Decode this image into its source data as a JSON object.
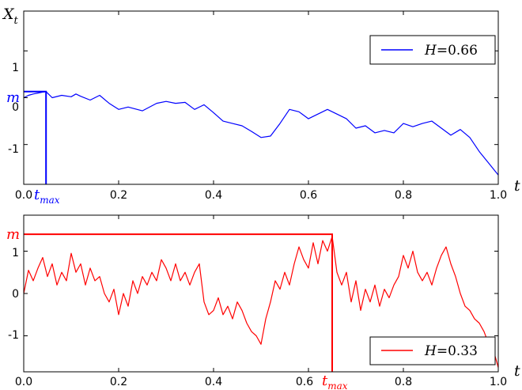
{
  "chart_data": [
    {
      "type": "line",
      "ylabel_main": "X",
      "ylabel_sub": "t",
      "xlabel": "t",
      "xlim": [
        0.0,
        1.0
      ],
      "ylim": [
        -1.85,
        1.85
      ],
      "xticks": [
        "0.0",
        "0.2",
        "0.4",
        "0.6",
        "0.8",
        "1.0"
      ],
      "yticks": [
        "1",
        "0",
        "-1"
      ],
      "legend": {
        "param": "H",
        "eq": "=0.66",
        "position": "top-right"
      },
      "color": "#0000ff",
      "m_label": "m",
      "tmax_label": "t",
      "tmax_sub": "max",
      "m_value": 0.13,
      "t_max": 0.047,
      "series": [
        {
          "x": [
            0.0,
            0.01,
            0.02,
            0.03,
            0.04,
            0.047,
            0.06,
            0.08,
            0.1,
            0.11,
            0.12,
            0.14,
            0.16,
            0.18,
            0.2,
            0.22,
            0.25,
            0.28,
            0.3,
            0.32,
            0.34,
            0.36,
            0.38,
            0.4,
            0.42,
            0.44,
            0.46,
            0.48,
            0.5,
            0.52,
            0.54,
            0.56,
            0.58,
            0.6,
            0.62,
            0.64,
            0.66,
            0.68,
            0.7,
            0.72,
            0.74,
            0.76,
            0.78,
            0.8,
            0.82,
            0.84,
            0.86,
            0.88,
            0.9,
            0.92,
            0.94,
            0.96,
            0.98,
            1.0
          ],
          "y": [
            0.0,
            0.05,
            0.08,
            0.1,
            0.12,
            0.13,
            0.0,
            0.05,
            0.02,
            0.08,
            0.03,
            -0.05,
            0.05,
            -0.12,
            -0.25,
            -0.2,
            -0.28,
            -0.12,
            -0.08,
            -0.12,
            -0.1,
            -0.25,
            -0.15,
            -0.32,
            -0.5,
            -0.55,
            -0.6,
            -0.72,
            -0.85,
            -0.82,
            -0.55,
            -0.25,
            -0.3,
            -0.45,
            -0.35,
            -0.25,
            -0.35,
            -0.45,
            -0.65,
            -0.6,
            -0.75,
            -0.7,
            -0.75,
            -0.55,
            -0.62,
            -0.55,
            -0.5,
            -0.65,
            -0.8,
            -0.68,
            -0.85,
            -1.15,
            -1.4,
            -1.65
          ]
        }
      ]
    },
    {
      "type": "line",
      "xlabel": "t",
      "xlim": [
        0.0,
        1.0
      ],
      "ylim": [
        -1.85,
        1.85
      ],
      "xticks": [
        "0.0",
        "0.2",
        "0.4",
        "0.6",
        "0.8",
        "1.0"
      ],
      "yticks": [
        "1",
        "0",
        "-1"
      ],
      "legend": {
        "param": "H",
        "eq": "=0.33",
        "position": "bottom-right"
      },
      "color": "#ff0000",
      "m_label": "m",
      "tmax_label": "t",
      "tmax_sub": "max",
      "m_value": 1.4,
      "t_max": 0.65,
      "series": [
        {
          "x": [
            0.0,
            0.01,
            0.02,
            0.03,
            0.04,
            0.05,
            0.06,
            0.07,
            0.08,
            0.09,
            0.1,
            0.11,
            0.12,
            0.13,
            0.14,
            0.15,
            0.16,
            0.17,
            0.18,
            0.19,
            0.2,
            0.21,
            0.22,
            0.23,
            0.24,
            0.25,
            0.26,
            0.27,
            0.28,
            0.29,
            0.3,
            0.31,
            0.32,
            0.33,
            0.34,
            0.35,
            0.36,
            0.37,
            0.38,
            0.39,
            0.4,
            0.41,
            0.42,
            0.43,
            0.44,
            0.45,
            0.46,
            0.47,
            0.48,
            0.49,
            0.5,
            0.51,
            0.52,
            0.53,
            0.54,
            0.55,
            0.56,
            0.57,
            0.58,
            0.59,
            0.6,
            0.61,
            0.62,
            0.63,
            0.64,
            0.65,
            0.66,
            0.67,
            0.68,
            0.69,
            0.7,
            0.71,
            0.72,
            0.73,
            0.74,
            0.75,
            0.76,
            0.77,
            0.78,
            0.79,
            0.8,
            0.81,
            0.82,
            0.83,
            0.84,
            0.85,
            0.86,
            0.87,
            0.88,
            0.89,
            0.9,
            0.91,
            0.92,
            0.93,
            0.94,
            0.95,
            0.96,
            0.97,
            0.98,
            0.99,
            1.0
          ],
          "y": [
            0.0,
            0.55,
            0.3,
            0.6,
            0.85,
            0.4,
            0.7,
            0.2,
            0.5,
            0.3,
            0.95,
            0.5,
            0.7,
            0.2,
            0.6,
            0.3,
            0.4,
            0.0,
            -0.2,
            0.1,
            -0.5,
            0.0,
            -0.3,
            0.3,
            0.0,
            0.4,
            0.2,
            0.5,
            0.3,
            0.8,
            0.6,
            0.3,
            0.7,
            0.3,
            0.5,
            0.2,
            0.5,
            0.7,
            -0.2,
            -0.5,
            -0.4,
            -0.1,
            -0.5,
            -0.3,
            -0.6,
            -0.2,
            -0.4,
            -0.7,
            -0.9,
            -1.0,
            -1.2,
            -0.6,
            -0.2,
            0.3,
            0.1,
            0.5,
            0.2,
            0.7,
            1.1,
            0.8,
            0.6,
            1.2,
            0.7,
            1.25,
            1.0,
            1.35,
            0.5,
            0.2,
            0.5,
            -0.2,
            0.3,
            -0.4,
            0.1,
            -0.2,
            0.2,
            -0.3,
            0.1,
            -0.1,
            0.2,
            0.4,
            0.9,
            0.6,
            1.0,
            0.5,
            0.3,
            0.5,
            0.2,
            0.6,
            0.9,
            1.1,
            0.7,
            0.4,
            0.0,
            -0.3,
            -0.4,
            -0.6,
            -0.7,
            -0.9,
            -1.2,
            -1.35,
            -1.75
          ]
        }
      ]
    }
  ]
}
